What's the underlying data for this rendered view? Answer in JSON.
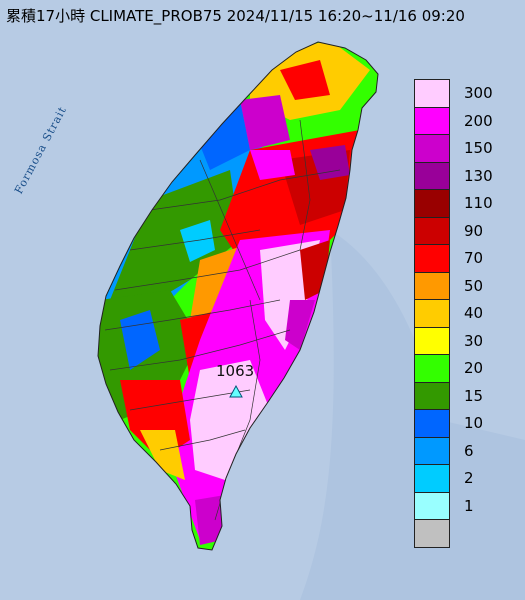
{
  "title": "累積17小時 CLIMATE_PROB75 2024/11/15 16:20~11/16 09:20",
  "sea_label": "Formosa Strait",
  "max_station_value": "1063",
  "legend": {
    "items": [
      {
        "label": "300",
        "color": "#ffccff"
      },
      {
        "label": "200",
        "color": "#ff00ff"
      },
      {
        "label": "150",
        "color": "#cc00cc"
      },
      {
        "label": "130",
        "color": "#990099"
      },
      {
        "label": "110",
        "color": "#990000"
      },
      {
        "label": "90",
        "color": "#cc0000"
      },
      {
        "label": "70",
        "color": "#ff0000"
      },
      {
        "label": "50",
        "color": "#ff9900"
      },
      {
        "label": "40",
        "color": "#ffcc00"
      },
      {
        "label": "30",
        "color": "#ffff00"
      },
      {
        "label": "20",
        "color": "#33ff00"
      },
      {
        "label": "15",
        "color": "#339900"
      },
      {
        "label": "10",
        "color": "#0066ff"
      },
      {
        "label": "6",
        "color": "#0099ff"
      },
      {
        "label": "2",
        "color": "#00ccff"
      },
      {
        "label": "1",
        "color": "#99ffff"
      },
      {
        "label": "",
        "color": "#c0c0c0"
      }
    ]
  }
}
